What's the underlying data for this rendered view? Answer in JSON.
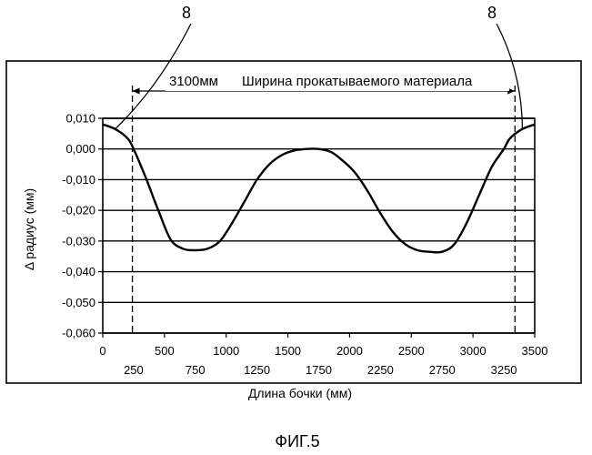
{
  "chart_data": {
    "type": "line",
    "xlabel": "Длина бочки (мм)",
    "ylabel": "Δ радиус (мм)",
    "xlim": [
      0,
      3500
    ],
    "ylim": [
      -0.06,
      0.01
    ],
    "x_ticks_top_row": [
      "0",
      "500",
      "1000",
      "1500",
      "2000",
      "2500",
      "3000",
      "3500"
    ],
    "x_ticks_bottom_row": [
      "250",
      "750",
      "1250",
      "1750",
      "2250",
      "2750",
      "3250"
    ],
    "y_ticks": [
      "0,010",
      "0,000",
      "-0,010",
      "-0,020",
      "-0,030",
      "-0,040",
      "-0,050",
      "-0,060"
    ],
    "grid": "horizontal",
    "series": [
      {
        "x": [
          0,
          100,
          200,
          250,
          350,
          450,
          550,
          650,
          750,
          850,
          950,
          1050,
          1150,
          1250,
          1350,
          1450,
          1550,
          1650,
          1750,
          1850,
          1950,
          2050,
          2150,
          2250,
          2350,
          2450,
          2550,
          2650,
          2750,
          2850,
          2950,
          3050,
          3150,
          3250,
          3300,
          3400,
          3500
        ],
        "y": [
          0.008,
          0.0065,
          0.0035,
          0.0,
          -0.0095,
          -0.02,
          -0.0295,
          -0.0325,
          -0.033,
          -0.0325,
          -0.03,
          -0.024,
          -0.017,
          -0.01,
          -0.005,
          -0.002,
          -0.0005,
          0.0,
          0.0,
          -0.001,
          -0.004,
          -0.008,
          -0.014,
          -0.021,
          -0.027,
          -0.031,
          -0.033,
          -0.0335,
          -0.0335,
          -0.031,
          -0.024,
          -0.015,
          -0.006,
          0.0,
          0.0035,
          0.0065,
          0.008
        ]
      }
    ],
    "width_marker": {
      "x_start": 240,
      "x_end": 3340,
      "label_value": "3100мм",
      "label_text": "Ширина прокатываемого материала"
    },
    "callouts": [
      {
        "label": "8",
        "target_x": 100,
        "target_y": 0.0065
      },
      {
        "label": "8",
        "target_x": 3400,
        "target_y": 0.0065
      }
    ]
  },
  "figure_caption": "ФИГ.5"
}
